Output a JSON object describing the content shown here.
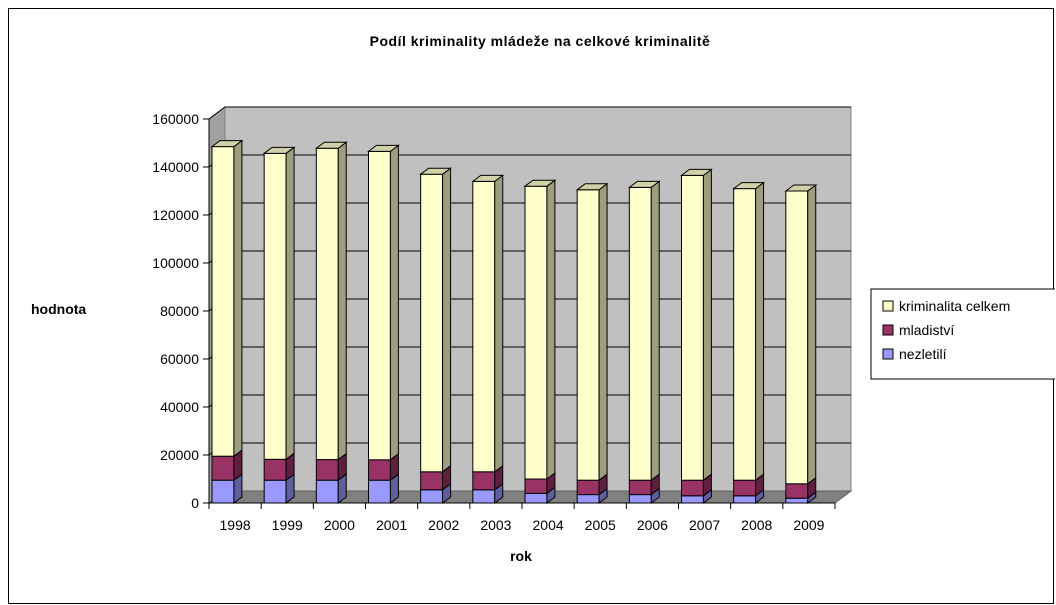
{
  "chart_data": {
    "type": "bar",
    "stacked": true,
    "three_d": true,
    "title": "Podíl kriminality mládeže na celkové kriminalitě",
    "xlabel": "rok",
    "ylabel": "hodnota",
    "ylim": [
      0,
      160000
    ],
    "ytick_step": 20000,
    "yticks": [
      "0",
      "20000",
      "40000",
      "60000",
      "80000",
      "100000",
      "120000",
      "140000",
      "160000"
    ],
    "grid": true,
    "legend_position": "right",
    "categories": [
      "1998",
      "1999",
      "2000",
      "2001",
      "2002",
      "2003",
      "2004",
      "2005",
      "2006",
      "2007",
      "2008",
      "2009"
    ],
    "series": [
      {
        "name": "nezletilí",
        "color": "#9999ff",
        "values": [
          9500,
          9500,
          9500,
          9500,
          5500,
          5500,
          4000,
          3500,
          3500,
          3000,
          3000,
          2000
        ]
      },
      {
        "name": "mladiství",
        "color": "#993366",
        "values": [
          10000,
          8700,
          8600,
          8500,
          7500,
          7500,
          6000,
          6000,
          6000,
          6500,
          6500,
          6000
        ]
      },
      {
        "name": "kriminalita celkem",
        "color": "#ffffcc",
        "values": [
          129000,
          127500,
          129700,
          128500,
          124000,
          121000,
          122000,
          121000,
          122000,
          127000,
          121500,
          122000
        ]
      }
    ],
    "legend_order": [
      "kriminalita celkem",
      "mladiství",
      "nezletilí"
    ]
  }
}
